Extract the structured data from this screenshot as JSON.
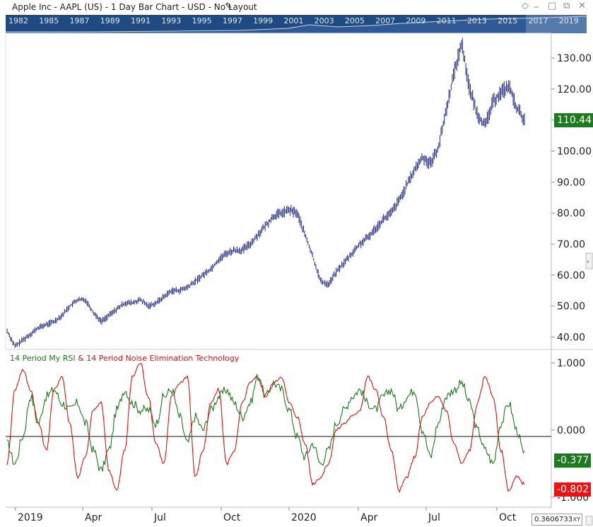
{
  "window": {
    "title": "Apple Inc - AAPL (US) - 1 Day Bar Chart - USD - No Layout"
  },
  "navigator": {
    "years": [
      "1982",
      "1985",
      "1987",
      "1989",
      "1991",
      "1993",
      "1995",
      "1997",
      "1999",
      "2001",
      "2003",
      "2005",
      "2007",
      "2009",
      "2011",
      "2013",
      "2015",
      "2017",
      "2019"
    ]
  },
  "legend": {
    "rsi": "14 Period My RSI",
    "amp": " & ",
    "net": "14 Period Noise Elimination Technology"
  },
  "badges": {
    "last_price": "110.44",
    "rsi_value": "-0.377",
    "net_value": "-0.802"
  },
  "cursor": {
    "value": "0.3606733",
    "mode": "XY"
  },
  "colors": {
    "bars": "#1a237e",
    "rsi": "#1a7a1a",
    "net": "#dd1111",
    "navigator": "#1f4a82",
    "price_badge": "#1e7a1e",
    "rsi_badge": "#1e7a1e",
    "net_badge": "#ee1111"
  },
  "chart_data": [
    {
      "type": "bar",
      "subtype": "ohlc-daily",
      "title": "Apple Inc - AAPL (US) - 1 Day Bar Chart - USD - No Layout",
      "x_ticks": [
        "2019",
        "Apr",
        "Jul",
        "Oct",
        "2020",
        "Apr",
        "Jul",
        "Oct"
      ],
      "y_ticks": [
        "40.00",
        "50.00",
        "60.00",
        "70.00",
        "80.00",
        "90.00",
        "100.00",
        "110.00",
        "120.00",
        "130.00"
      ],
      "ylim": [
        36,
        138
      ],
      "last_value": 110.44,
      "closes_approx": [
        42,
        37,
        39,
        41,
        43,
        44,
        45,
        47,
        50,
        52,
        52,
        48,
        45,
        47,
        49,
        51,
        51,
        52,
        50,
        51,
        53,
        55,
        55,
        56,
        58,
        60,
        62,
        65,
        67,
        68,
        68,
        70,
        73,
        76,
        79,
        80,
        81,
        80,
        73,
        66,
        58,
        57,
        61,
        64,
        67,
        70,
        72,
        75,
        78,
        80,
        84,
        89,
        94,
        98,
        96,
        101,
        113,
        125,
        135,
        120,
        112,
        108,
        116,
        119,
        121,
        114,
        110
      ]
    },
    {
      "type": "line",
      "subtype": "oscillator",
      "y_ticks": [
        "1.000",
        "0.000",
        "-1.000"
      ],
      "ylim": [
        -1.15,
        1.2
      ],
      "series": [
        {
          "name": "14 Period My RSI",
          "color": "#1a7a1a",
          "last_value": -0.377,
          "values": [
            -0.2,
            -0.5,
            -0.1,
            0.5,
            0.1,
            0.5,
            0.6,
            0.4,
            0.3,
            0.4,
            0.1,
            -0.3,
            -0.6,
            -0.3,
            0.3,
            0.6,
            0.4,
            0.3,
            0.3,
            0.1,
            0.5,
            0.6,
            0.2,
            -0.2,
            0.2,
            0.0,
            0.3,
            0.5,
            0.6,
            0.4,
            0.2,
            0.4,
            0.8,
            0.5,
            0.7,
            0.6,
            0.3,
            -0.1,
            -0.4,
            -0.2,
            -0.5,
            -0.3,
            0.1,
            0.3,
            0.5,
            0.6,
            0.4,
            0.3,
            0.5,
            0.6,
            0.3,
            0.5,
            0.6,
            0.0,
            -0.4,
            0.1,
            0.5,
            0.6,
            0.7,
            0.4,
            0.0,
            -0.3,
            -0.5,
            0.1,
            0.4,
            0.0,
            -0.377
          ]
        },
        {
          "name": "14 Period Noise Elimination Technology",
          "color": "#dd1111",
          "last_value": -0.802,
          "values": [
            -0.5,
            0.6,
            0.9,
            0.6,
            0.1,
            -0.3,
            0.6,
            0.8,
            0.1,
            -0.7,
            -0.4,
            0.3,
            0.4,
            -0.6,
            -0.9,
            -0.3,
            0.8,
            1.0,
            0.5,
            -0.2,
            -0.5,
            0.5,
            0.7,
            0.8,
            -0.7,
            -0.3,
            0.4,
            0.6,
            -0.5,
            -0.3,
            0.4,
            0.7,
            0.8,
            0.5,
            0.7,
            0.8,
            0.4,
            0.2,
            -0.2,
            -0.8,
            -0.7,
            -0.5,
            0.0,
            0.1,
            0.2,
            0.3,
            0.8,
            0.6,
            0.2,
            -0.3,
            -0.9,
            -0.7,
            -0.4,
            0.2,
            0.4,
            0.5,
            0.3,
            -0.2,
            -0.5,
            -0.3,
            0.4,
            0.8,
            0.5,
            -0.3,
            -0.9,
            -0.7,
            -0.802
          ]
        }
      ]
    }
  ]
}
